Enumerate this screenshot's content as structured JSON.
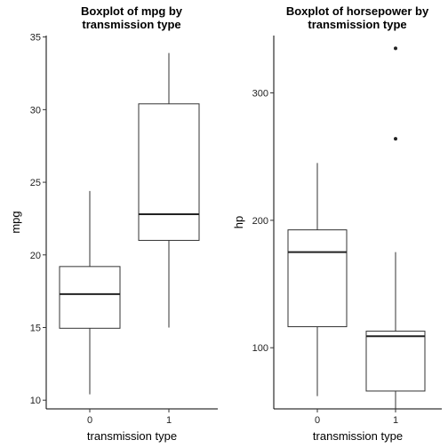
{
  "chart_data": [
    {
      "type": "boxplot",
      "title": [
        "Boxplot of mpg by",
        "transmission type"
      ],
      "xlabel": "transmission type",
      "ylabel": "mpg",
      "categories": [
        "0",
        "1"
      ],
      "ylim": [
        9.4,
        35.1
      ],
      "yticks": [
        10,
        15,
        20,
        25,
        30,
        35
      ],
      "boxes": [
        {
          "category": "0",
          "whisker_low": 10.4,
          "q1": 14.95,
          "median": 17.3,
          "q3": 19.2,
          "whisker_high": 24.4,
          "outliers": []
        },
        {
          "category": "1",
          "whisker_low": 15.0,
          "q1": 21.0,
          "median": 22.8,
          "q3": 30.4,
          "whisker_high": 33.9,
          "outliers": []
        }
      ],
      "grid": false
    },
    {
      "type": "boxplot",
      "title": [
        "Boxplot of horsepower by",
        "transmission type"
      ],
      "xlabel": "transmission type",
      "ylabel": "hp",
      "categories": [
        "0",
        "1"
      ],
      "ylim": [
        52,
        345
      ],
      "yticks": [
        100,
        200,
        300
      ],
      "boxes": [
        {
          "category": "0",
          "whisker_low": 62,
          "q1": 116.5,
          "median": 175,
          "q3": 192.5,
          "whisker_high": 245,
          "outliers": []
        },
        {
          "category": "1",
          "whisker_low": 52,
          "q1": 66,
          "median": 109,
          "q3": 113,
          "whisker_high": 175,
          "outliers": [
            264,
            335
          ]
        }
      ],
      "grid": false
    }
  ]
}
